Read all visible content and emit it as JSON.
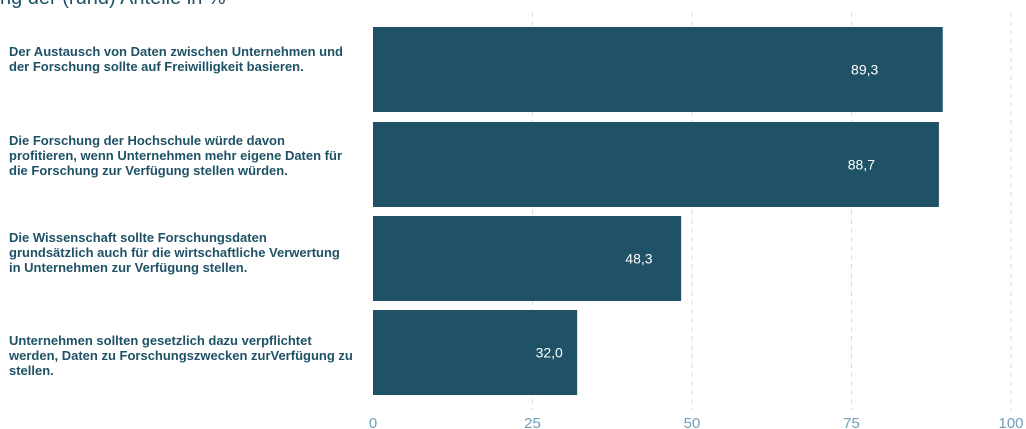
{
  "header": {
    "partial_title": "ng der (rund) Anteile in %"
  },
  "chart_data": {
    "type": "bar",
    "orientation": "horizontal",
    "categories": [
      "Der Austausch von Daten zwischen Unternehmen und der Forschung sollte auf Freiwilligkeit basieren.",
      "Die Forschung der Hochschule würde davon profitieren, wenn Unternehmen mehr eigene Daten für die Forschung zur Verfügung stellen würden.",
      "Die Wissenschaft sollte Forschungsdaten grundsätzlich auch für die wirtschaftliche Verwertung in Unternehmen zur Verfügung stellen.",
      "Unternehmen sollten gesetzlich dazu verpflichtet werden, Daten zu Forschungszwecken zurVerfügung zu stellen."
    ],
    "values": [
      89.3,
      88.7,
      48.3,
      32.0
    ],
    "value_labels": [
      "89,3",
      "88,7",
      "48,3",
      "32,0"
    ],
    "xlim": [
      0,
      100
    ],
    "xticks": [
      0,
      25,
      50,
      75,
      100
    ],
    "xtick_labels": [
      "0",
      "25",
      "50",
      "75",
      "100"
    ],
    "grid": true,
    "colors": {
      "bar": "#1f5266",
      "bar_text": "#ffffff",
      "label": "#1f5266",
      "tick": "#6f9fb8",
      "grid": "#d8dde0"
    }
  }
}
